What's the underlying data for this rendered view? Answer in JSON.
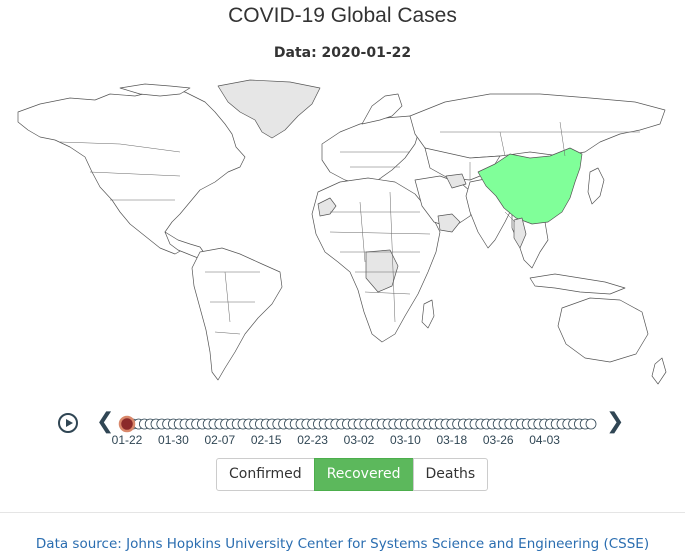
{
  "title": "COVID-19 Global Cases",
  "subtitle": "Data: 2020-01-22",
  "tabs": [
    {
      "label": "Confirmed",
      "active": false
    },
    {
      "label": "Recovered",
      "active": true
    },
    {
      "label": "Deaths",
      "active": false
    }
  ],
  "timeline": {
    "current": "01-22",
    "tick_labels": [
      "01-22",
      "01-30",
      "02-07",
      "02-15",
      "02-23",
      "03-02",
      "03-10",
      "03-18",
      "03-26",
      "04-03"
    ],
    "steps": 81,
    "current_index": 0
  },
  "source_text": "Data source: Johns Hopkins University Center for Systems Science and Engineering (CSSE)",
  "colors": {
    "highlight": "#80ff99",
    "no_data": "#e6e6e6",
    "land": "#ffffff",
    "border": "#555555",
    "active_button": "#5cb85c",
    "timeline_current": "#8b2a2a",
    "link": "#2a6db0"
  },
  "icons": {
    "play": "play-icon",
    "prev": "chevron-left-icon",
    "next": "chevron-right-icon"
  },
  "chart_data": {
    "type": "choropleth",
    "date": "2020-01-22",
    "metric": "Recovered",
    "highlighted_regions": [
      "China"
    ],
    "shaded_regions": [
      "Greenland",
      "Western Sahara",
      "Oman",
      "Yemen",
      "Turkmenistan",
      "Myanmar",
      "Central African Republic",
      "Zambia",
      "Tanzania"
    ]
  }
}
